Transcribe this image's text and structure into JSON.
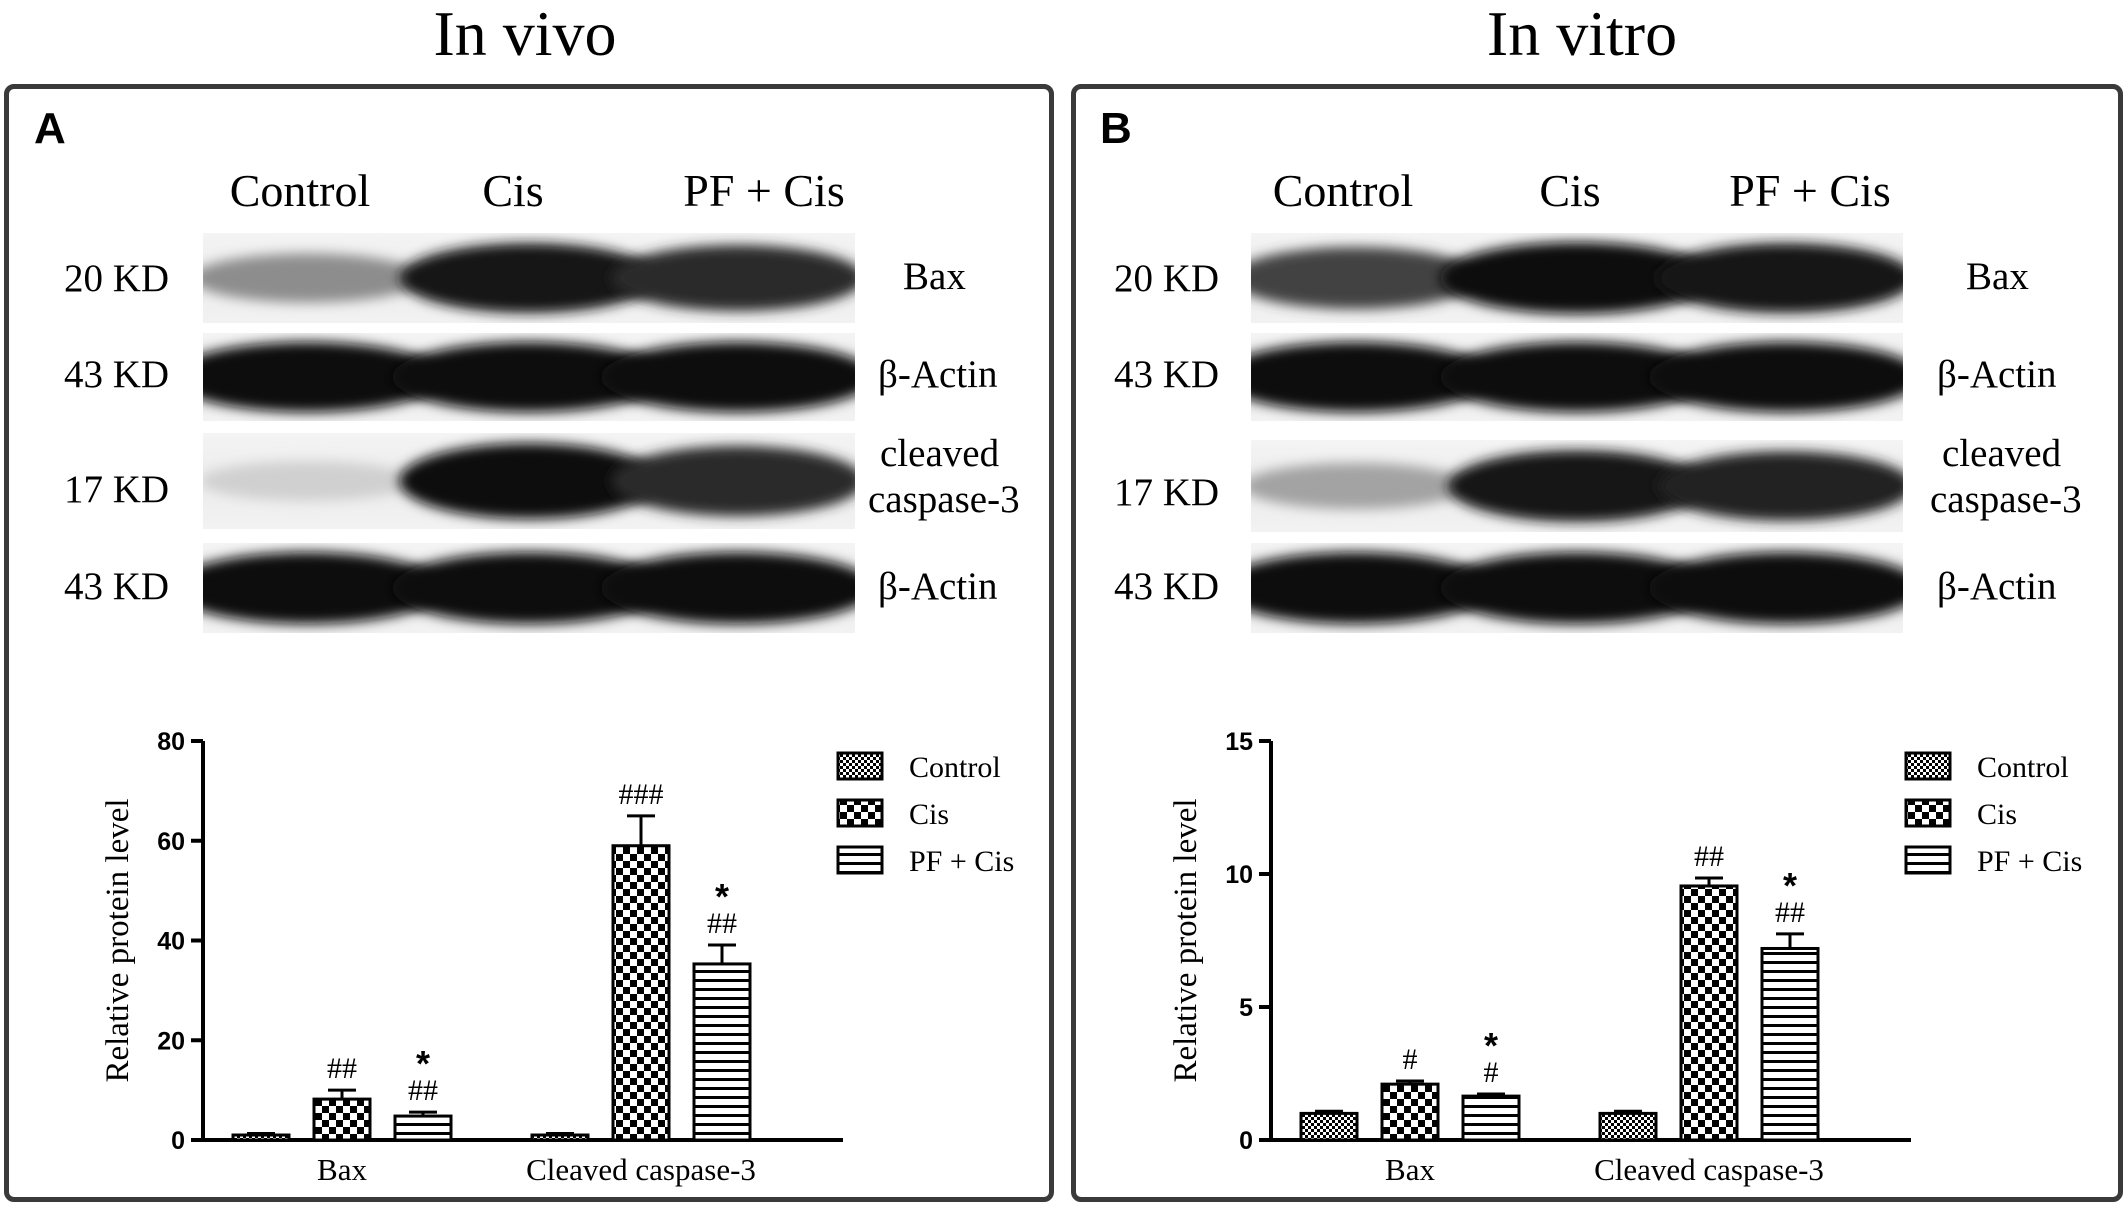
{
  "titles": {
    "left": "In vivo",
    "right": "In vitro"
  },
  "panels": [
    {
      "letter": "A",
      "lanes": [
        "Control",
        "Cis",
        "PF + Cis"
      ],
      "rows": [
        {
          "kd": "20 KD",
          "protein": "Bax",
          "intensities": [
            0.42,
            0.95,
            0.85
          ]
        },
        {
          "kd": "43 KD",
          "protein": "β-Actin",
          "intensities": [
            1.0,
            1.0,
            1.0
          ]
        },
        {
          "kd": "17 KD",
          "protein": "cleaved caspase-3",
          "protein_lines": [
            "cleaved",
            "caspase-3"
          ],
          "intensities": [
            0.12,
            0.98,
            0.85
          ]
        },
        {
          "kd": "43 KD",
          "protein": "β-Actin",
          "intensities": [
            1.0,
            1.0,
            1.0
          ]
        }
      ]
    },
    {
      "letter": "B",
      "lanes": [
        "Control",
        "Cis",
        "PF + Cis"
      ],
      "rows": [
        {
          "kd": "20 KD",
          "protein": "Bax",
          "intensities": [
            0.75,
            1.0,
            0.95
          ]
        },
        {
          "kd": "43 KD",
          "protein": "β-Actin",
          "intensities": [
            1.0,
            1.0,
            1.0
          ]
        },
        {
          "kd": "17 KD",
          "protein": "cleaved caspase-3",
          "protein_lines": [
            "cleaved",
            "caspase-3"
          ],
          "intensities": [
            0.32,
            0.95,
            0.9
          ]
        },
        {
          "kd": "43 KD",
          "protein": "β-Actin",
          "intensities": [
            1.0,
            1.0,
            1.0
          ]
        }
      ]
    }
  ],
  "chart_data": [
    {
      "type": "bar",
      "title": "",
      "ylabel": "Relative protein level",
      "xlabel": "",
      "ylim": [
        0,
        80
      ],
      "yticks": [
        "0",
        "20",
        "40",
        "60",
        "80"
      ],
      "categories": [
        "Bax",
        "Cleaved caspase-3"
      ],
      "legend_position": "top-right",
      "series": [
        {
          "name": "Control",
          "pattern": "fine-check",
          "values": [
            1,
            1
          ],
          "errors": [
            0.3,
            0.3
          ],
          "annotations": [
            "",
            ""
          ]
        },
        {
          "name": "Cis",
          "pattern": "coarse-check",
          "values": [
            8.2,
            59
          ],
          "errors": [
            1.8,
            6
          ],
          "annotations": [
            "##",
            "###"
          ]
        },
        {
          "name": "PF + Cis",
          "pattern": "horizontal-stripes",
          "values": [
            4.8,
            35.3
          ],
          "errors": [
            0.8,
            3.8
          ],
          "annotations": [
            "*\n##",
            "*\n##"
          ]
        }
      ]
    },
    {
      "type": "bar",
      "title": "",
      "ylabel": "Relative protein level",
      "xlabel": "",
      "ylim": [
        0,
        15
      ],
      "yticks": [
        "0",
        "5",
        "10",
        "15"
      ],
      "categories": [
        "Bax",
        "Cleaved caspase-3"
      ],
      "legend_position": "top-right",
      "series": [
        {
          "name": "Control",
          "pattern": "fine-check",
          "values": [
            1,
            1
          ],
          "errors": [
            0.08,
            0.08
          ],
          "annotations": [
            "",
            ""
          ]
        },
        {
          "name": "Cis",
          "pattern": "coarse-check",
          "values": [
            2.1,
            9.55
          ],
          "errors": [
            0.12,
            0.3
          ],
          "annotations": [
            "#",
            "##"
          ]
        },
        {
          "name": "PF + Cis",
          "pattern": "horizontal-stripes",
          "values": [
            1.65,
            7.2
          ],
          "errors": [
            0.08,
            0.55
          ],
          "annotations": [
            "*\n#",
            "*\n##"
          ]
        }
      ]
    }
  ]
}
